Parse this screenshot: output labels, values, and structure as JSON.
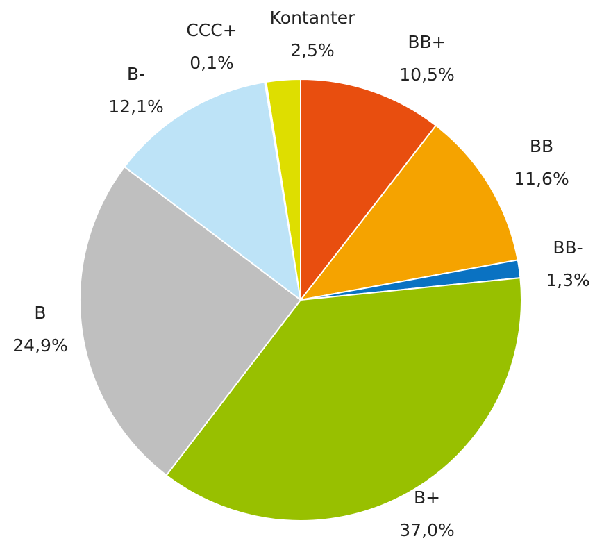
{
  "chart_data": {
    "type": "pie",
    "categories": [
      "BB+",
      "BB",
      "BB-",
      "B+",
      "B",
      "B-",
      "CCC+",
      "Kontanter"
    ],
    "values": [
      10.5,
      11.6,
      1.3,
      37.0,
      24.9,
      12.1,
      0.1,
      2.5
    ],
    "value_labels": [
      "10,5%",
      "11,6%",
      "1,3%",
      "37,0%",
      "24,9%",
      "12,1%",
      "0,1%",
      "2,5%"
    ],
    "colors": [
      "#e84e0f",
      "#f5a300",
      "#0a72c2",
      "#98c000",
      "#bfbfbf",
      "#bde3f7",
      "#f4f4f4",
      "#dede00"
    ]
  }
}
